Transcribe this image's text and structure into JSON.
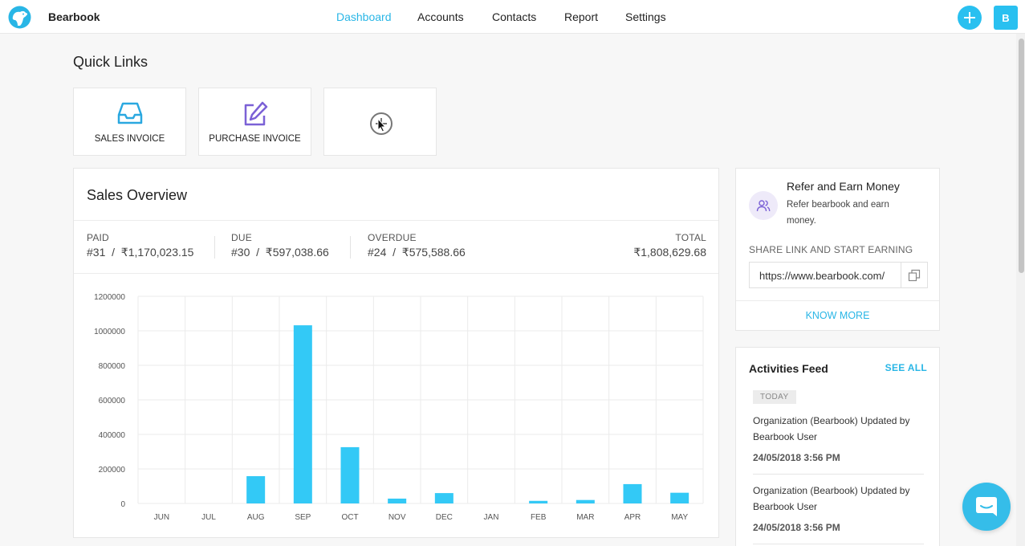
{
  "app": {
    "brand": "Bearbook",
    "avatar_initial": "B",
    "accent": "#29c0f0"
  },
  "nav": {
    "items": [
      "Dashboard",
      "Accounts",
      "Contacts",
      "Report",
      "Settings"
    ],
    "active": "Dashboard"
  },
  "quick_links": {
    "title": "Quick Links",
    "items": [
      {
        "label": "SALES INVOICE",
        "icon": "inbox-icon"
      },
      {
        "label": "PURCHASE INVOICE",
        "icon": "edit-icon"
      },
      {
        "label": "",
        "icon": "add-circle-icon"
      }
    ]
  },
  "sales_overview": {
    "title": "Sales Overview",
    "paid": {
      "label": "PAID",
      "value": "#31  /  ₹1,170,023.15"
    },
    "due": {
      "label": "DUE",
      "value": "#30  /  ₹597,038.66"
    },
    "overdue": {
      "label": "OVERDUE",
      "value": "#24  /  ₹575,588.66"
    },
    "total": {
      "label": "TOTAL",
      "value": "₹1,808,629.68"
    }
  },
  "chart_data": {
    "type": "bar",
    "categories": [
      "JUN",
      "JUL",
      "AUG",
      "SEP",
      "OCT",
      "NOV",
      "DEC",
      "JAN",
      "FEB",
      "MAR",
      "APR",
      "MAY"
    ],
    "values": [
      0,
      0,
      158000,
      1032000,
      326000,
      28000,
      60000,
      0,
      15000,
      20000,
      112000,
      62000
    ],
    "ylim": [
      0,
      1200000
    ],
    "yticks": [
      "1200000",
      "1000000",
      "800000",
      "600000",
      "400000",
      "200000",
      "0"
    ],
    "bar_color": "#33c9f6",
    "grid": true
  },
  "refer": {
    "title": "Refer and Earn Money",
    "desc": "Refer bearbook and earn money.",
    "share_label": "SHARE LINK AND START EARNING",
    "link": "https://www.bearbook.com/",
    "know_more": "KNOW MORE"
  },
  "activities": {
    "title": "Activities Feed",
    "see_all": "SEE ALL",
    "day": "TODAY",
    "items": [
      {
        "text": "Organization (Bearbook) Updated by Bearbook User",
        "time": "24/05/2018 3:56 PM"
      },
      {
        "text": "Organization (Bearbook) Updated by Bearbook User",
        "time": "24/05/2018 3:56 PM"
      }
    ]
  }
}
